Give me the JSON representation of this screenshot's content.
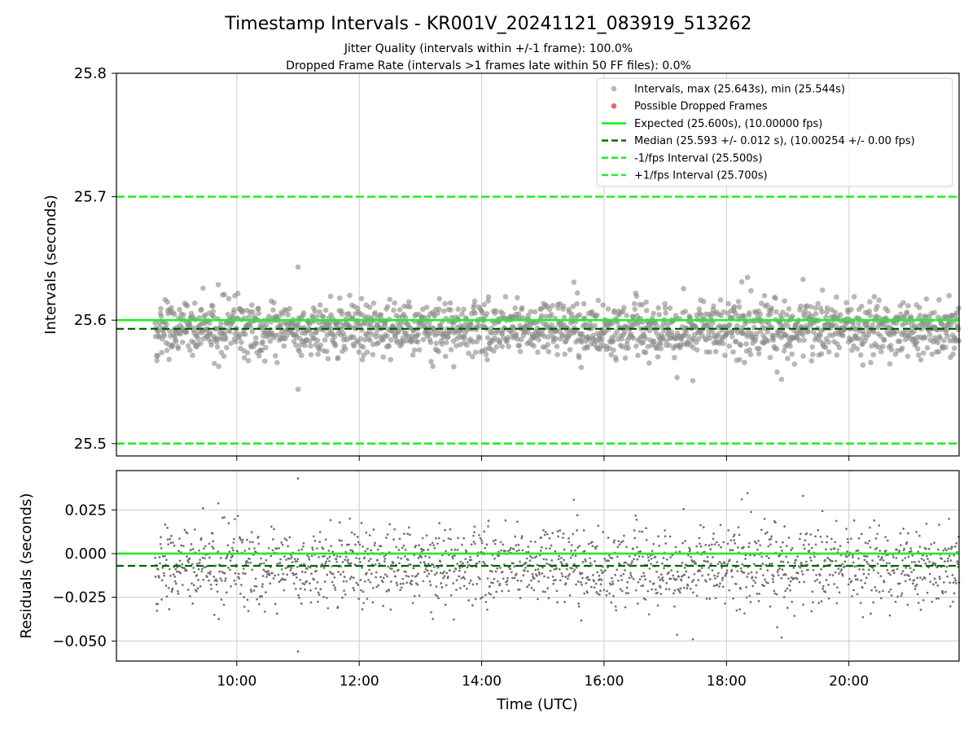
{
  "figure": {
    "title": "Timestamp Intervals - KR001V_20241121_083919_513262",
    "subtitle_line1": "Jitter Quality (intervals within +/-1 frame): 100.0%",
    "subtitle_line2": "Dropped Frame Rate (intervals >1 frames late within 50 FF files): 0.0%"
  },
  "colors": {
    "points_top": "#8c8c8c",
    "points_bottom": "#707070",
    "dropped": "#f06060",
    "expected": "#22ee22",
    "median": "#006400",
    "bounds": "#22ee22",
    "grid": "#cccccc"
  },
  "chart_data": [
    {
      "type": "scatter",
      "panel": "intervals",
      "ylabel": "Intervals (seconds)",
      "xlim": [
        "08:02",
        "21:48"
      ],
      "ylim": [
        25.49,
        25.8
      ],
      "yticks": [
        25.5,
        25.6,
        25.7,
        25.8
      ],
      "ytick_labels": [
        "25.5",
        "25.6",
        "25.7",
        "25.8"
      ],
      "grid": "x-only",
      "legend_position": "top-right",
      "legend": [
        {
          "label": "Intervals, max (25.643s), min (25.544s)",
          "kind": "dot-gray"
        },
        {
          "label": "Possible Dropped Frames",
          "kind": "dot-red"
        },
        {
          "label": "Expected (25.600s), (10.00000 fps)",
          "kind": "line-solid"
        },
        {
          "label": "Median (25.593 +/- 0.012 s), (10.00254 +/- 0.00 fps)",
          "kind": "line-dash-dark"
        },
        {
          "label": "-1/fps Interval (25.500s)",
          "kind": "line-dash-light"
        },
        {
          "label": "+1/fps Interval (25.700s)",
          "kind": "line-dash-light"
        }
      ],
      "reference_lines": {
        "expected": 25.6,
        "median": 25.593,
        "lower": 25.5,
        "upper": 25.7
      },
      "series": {
        "name": "Intervals",
        "x_start": "08:40",
        "x_end": "21:48",
        "count": 1848,
        "max": 25.643,
        "min": 25.544,
        "median": 25.593,
        "std": 0.012,
        "notable_points": [
          {
            "x": "11:00",
            "y": 25.643
          },
          {
            "x": "11:00",
            "y": 25.544
          },
          {
            "x": "17:27",
            "y": 25.551
          },
          {
            "x": "18:54",
            "y": 25.552
          },
          {
            "x": "19:15",
            "y": 25.633
          },
          {
            "x": "18:15",
            "y": 25.631
          }
        ]
      },
      "dropped_frames": []
    },
    {
      "type": "scatter",
      "panel": "residuals",
      "xlabel": "Time (UTC)",
      "ylabel": "Residuals (seconds)",
      "xlim": [
        "08:02",
        "21:48"
      ],
      "xticks": [
        "10:00",
        "12:00",
        "14:00",
        "16:00",
        "18:00",
        "20:00"
      ],
      "ylim": [
        -0.0615,
        0.0475
      ],
      "yticks": [
        0.025,
        0.0,
        -0.025,
        -0.05
      ],
      "ytick_labels": [
        "0.025",
        "0.000",
        "−0.025",
        "−0.050"
      ],
      "grid": "both",
      "reference_lines": {
        "zero": 0.0,
        "median_offset": -0.007
      },
      "series": {
        "name": "Residuals",
        "x_start": "08:40",
        "x_end": "21:48",
        "count": 1848,
        "max": 0.043,
        "min": -0.056
      }
    }
  ]
}
